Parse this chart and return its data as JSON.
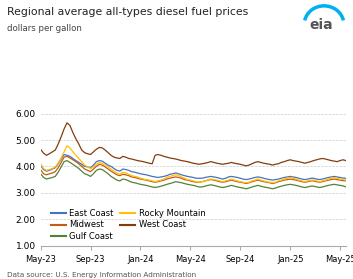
{
  "title": "Regional average all-types diesel fuel prices",
  "subtitle": "dollars per gallon",
  "ylim": [
    1.0,
    6.5
  ],
  "yticks": [
    1.0,
    2.0,
    3.0,
    4.0,
    5.0,
    6.0
  ],
  "background_color": "#ffffff",
  "grid_color": "#cccccc",
  "source": "Data source: U.S. Energy Information Administration",
  "series": {
    "East Coast": {
      "color": "#4472c4",
      "values": [
        4.05,
        3.88,
        3.82,
        3.85,
        3.9,
        3.95,
        4.1,
        4.28,
        4.45,
        4.42,
        4.38,
        4.3,
        4.22,
        4.15,
        4.08,
        4.0,
        3.98,
        3.95,
        4.05,
        4.18,
        4.22,
        4.2,
        4.12,
        4.05,
        4.0,
        3.92,
        3.85,
        3.82,
        3.9,
        3.88,
        3.85,
        3.8,
        3.78,
        3.75,
        3.72,
        3.7,
        3.68,
        3.65,
        3.62,
        3.6,
        3.58,
        3.6,
        3.62,
        3.65,
        3.7,
        3.72,
        3.75,
        3.72,
        3.68,
        3.65,
        3.62,
        3.6,
        3.58,
        3.55,
        3.55,
        3.55,
        3.58,
        3.6,
        3.62,
        3.6,
        3.58,
        3.55,
        3.52,
        3.55,
        3.6,
        3.62,
        3.6,
        3.58,
        3.55,
        3.52,
        3.5,
        3.52,
        3.55,
        3.58,
        3.6,
        3.58,
        3.55,
        3.52,
        3.5,
        3.48,
        3.5,
        3.52,
        3.55,
        3.58,
        3.6,
        3.62,
        3.6,
        3.58,
        3.55,
        3.52,
        3.5,
        3.52,
        3.55,
        3.55,
        3.52,
        3.5,
        3.52,
        3.55,
        3.58,
        3.6,
        3.62,
        3.6,
        3.58,
        3.56,
        3.55
      ]
    },
    "Midwest": {
      "color": "#c55a11",
      "values": [
        3.88,
        3.72,
        3.68,
        3.72,
        3.75,
        3.8,
        3.95,
        4.15,
        4.35,
        4.38,
        4.32,
        4.25,
        4.18,
        4.1,
        4.0,
        3.9,
        3.85,
        3.8,
        3.9,
        4.0,
        4.08,
        4.05,
        3.98,
        3.9,
        3.82,
        3.75,
        3.68,
        3.65,
        3.7,
        3.68,
        3.65,
        3.6,
        3.58,
        3.55,
        3.52,
        3.5,
        3.48,
        3.45,
        3.42,
        3.4,
        3.42,
        3.45,
        3.48,
        3.52,
        3.55,
        3.58,
        3.6,
        3.58,
        3.55,
        3.5,
        3.48,
        3.45,
        3.42,
        3.4,
        3.4,
        3.42,
        3.45,
        3.48,
        3.5,
        3.48,
        3.45,
        3.42,
        3.4,
        3.42,
        3.45,
        3.48,
        3.45,
        3.42,
        3.4,
        3.38,
        3.35,
        3.38,
        3.42,
        3.45,
        3.48,
        3.45,
        3.42,
        3.4,
        3.38,
        3.35,
        3.38,
        3.42,
        3.45,
        3.48,
        3.5,
        3.52,
        3.5,
        3.48,
        3.45,
        3.42,
        3.4,
        3.42,
        3.45,
        3.45,
        3.42,
        3.4,
        3.42,
        3.45,
        3.48,
        3.5,
        3.52,
        3.5,
        3.48,
        3.46,
        3.45
      ]
    },
    "Gulf Coast": {
      "color": "#548235",
      "values": [
        3.72,
        3.58,
        3.52,
        3.55,
        3.58,
        3.62,
        3.78,
        3.98,
        4.18,
        4.22,
        4.15,
        4.08,
        4.0,
        3.92,
        3.82,
        3.72,
        3.68,
        3.62,
        3.72,
        3.85,
        3.9,
        3.88,
        3.8,
        3.72,
        3.62,
        3.55,
        3.48,
        3.45,
        3.52,
        3.5,
        3.45,
        3.4,
        3.38,
        3.35,
        3.32,
        3.3,
        3.28,
        3.25,
        3.22,
        3.2,
        3.22,
        3.25,
        3.28,
        3.32,
        3.35,
        3.38,
        3.42,
        3.4,
        3.38,
        3.35,
        3.32,
        3.3,
        3.28,
        3.25,
        3.22,
        3.22,
        3.25,
        3.28,
        3.3,
        3.28,
        3.25,
        3.22,
        3.2,
        3.22,
        3.25,
        3.28,
        3.25,
        3.22,
        3.2,
        3.18,
        3.15,
        3.18,
        3.22,
        3.25,
        3.28,
        3.25,
        3.22,
        3.2,
        3.18,
        3.15,
        3.18,
        3.22,
        3.25,
        3.28,
        3.3,
        3.32,
        3.3,
        3.28,
        3.25,
        3.22,
        3.2,
        3.22,
        3.25,
        3.25,
        3.22,
        3.2,
        3.22,
        3.25,
        3.28,
        3.3,
        3.32,
        3.3,
        3.28,
        3.26,
        3.22
      ]
    },
    "Rocky Mountain": {
      "color": "#ffc000",
      "values": [
        4.1,
        3.92,
        3.85,
        3.88,
        3.92,
        3.98,
        4.12,
        4.32,
        4.55,
        4.78,
        4.7,
        4.55,
        4.42,
        4.3,
        4.18,
        4.05,
        3.98,
        3.92,
        3.98,
        4.08,
        4.15,
        4.12,
        4.05,
        3.98,
        3.9,
        3.82,
        3.75,
        3.7,
        3.78,
        3.75,
        3.7,
        3.65,
        3.62,
        3.6,
        3.55,
        3.52,
        3.5,
        3.48,
        3.45,
        3.42,
        3.45,
        3.48,
        3.52,
        3.58,
        3.62,
        3.65,
        3.68,
        3.65,
        3.6,
        3.55,
        3.5,
        3.48,
        3.45,
        3.42,
        3.4,
        3.42,
        3.45,
        3.48,
        3.52,
        3.5,
        3.48,
        3.45,
        3.42,
        3.45,
        3.48,
        3.52,
        3.48,
        3.45,
        3.42,
        3.4,
        3.38,
        3.4,
        3.45,
        3.48,
        3.52,
        3.48,
        3.45,
        3.42,
        3.4,
        3.38,
        3.4,
        3.45,
        3.48,
        3.52,
        3.55,
        3.58,
        3.55,
        3.52,
        3.48,
        3.45,
        3.42,
        3.45,
        3.48,
        3.48,
        3.45,
        3.42,
        3.45,
        3.48,
        3.52,
        3.55,
        3.58,
        3.55,
        3.52,
        3.5,
        3.48
      ]
    },
    "West Coast": {
      "color": "#843c0c",
      "values": [
        4.65,
        4.5,
        4.42,
        4.48,
        4.55,
        4.62,
        4.85,
        5.12,
        5.42,
        5.65,
        5.55,
        5.28,
        5.05,
        4.85,
        4.62,
        4.52,
        4.48,
        4.45,
        4.55,
        4.65,
        4.72,
        4.7,
        4.62,
        4.52,
        4.42,
        4.35,
        4.32,
        4.3,
        4.38,
        4.35,
        4.3,
        4.28,
        4.25,
        4.22,
        4.2,
        4.18,
        4.15,
        4.12,
        4.1,
        4.42,
        4.45,
        4.42,
        4.38,
        4.35,
        4.32,
        4.3,
        4.28,
        4.25,
        4.22,
        4.2,
        4.18,
        4.15,
        4.12,
        4.1,
        4.08,
        4.1,
        4.12,
        4.15,
        4.18,
        4.15,
        4.12,
        4.1,
        4.08,
        4.1,
        4.12,
        4.15,
        4.12,
        4.1,
        4.08,
        4.05,
        4.02,
        4.05,
        4.1,
        4.15,
        4.18,
        4.15,
        4.12,
        4.1,
        4.08,
        4.05,
        4.08,
        4.1,
        4.15,
        4.18,
        4.22,
        4.25,
        4.22,
        4.2,
        4.18,
        4.15,
        4.12,
        4.15,
        4.18,
        4.22,
        4.25,
        4.28,
        4.3,
        4.28,
        4.25,
        4.22,
        4.2,
        4.18,
        4.22,
        4.25,
        4.22
      ]
    }
  },
  "x_tick_labels": [
    "May-23",
    "Sep-23",
    "Jan-24",
    "May-24",
    "Sep-24",
    "Jan-25",
    "May-25"
  ],
  "x_tick_positions": [
    0,
    17,
    34,
    51,
    68,
    85,
    102
  ],
  "n_points": 105,
  "legend_entries": [
    {
      "label": "East Coast",
      "color": "#4472c4"
    },
    {
      "label": "Midwest",
      "color": "#c55a11"
    },
    {
      "label": "Gulf Coast",
      "color": "#548235"
    },
    {
      "label": "Rocky Mountain",
      "color": "#ffc000"
    },
    {
      "label": "West Coast",
      "color": "#843c0c"
    }
  ]
}
